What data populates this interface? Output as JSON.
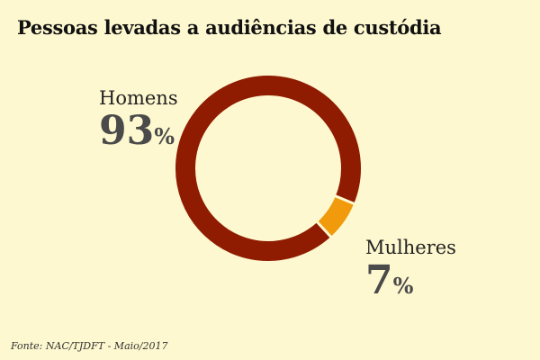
{
  "title": "Pessoas levadas a audiências de custódia",
  "source": "Fonte: NAC/TJDFT - Maio/2017",
  "colors": {
    "background": "#fdf8cf",
    "men": "#8f1b00",
    "women": "#f09a0c"
  },
  "chart_data": {
    "type": "pie",
    "style": "donut",
    "title": "Pessoas levadas a audiências de custódia",
    "slices": [
      {
        "label": "Homens",
        "value": 93,
        "display_value": "93",
        "unit": "%",
        "color": "#8f1b00"
      },
      {
        "label": "Mulheres",
        "value": 7,
        "display_value": "7",
        "unit": "%",
        "color": "#f09a0c"
      }
    ]
  }
}
